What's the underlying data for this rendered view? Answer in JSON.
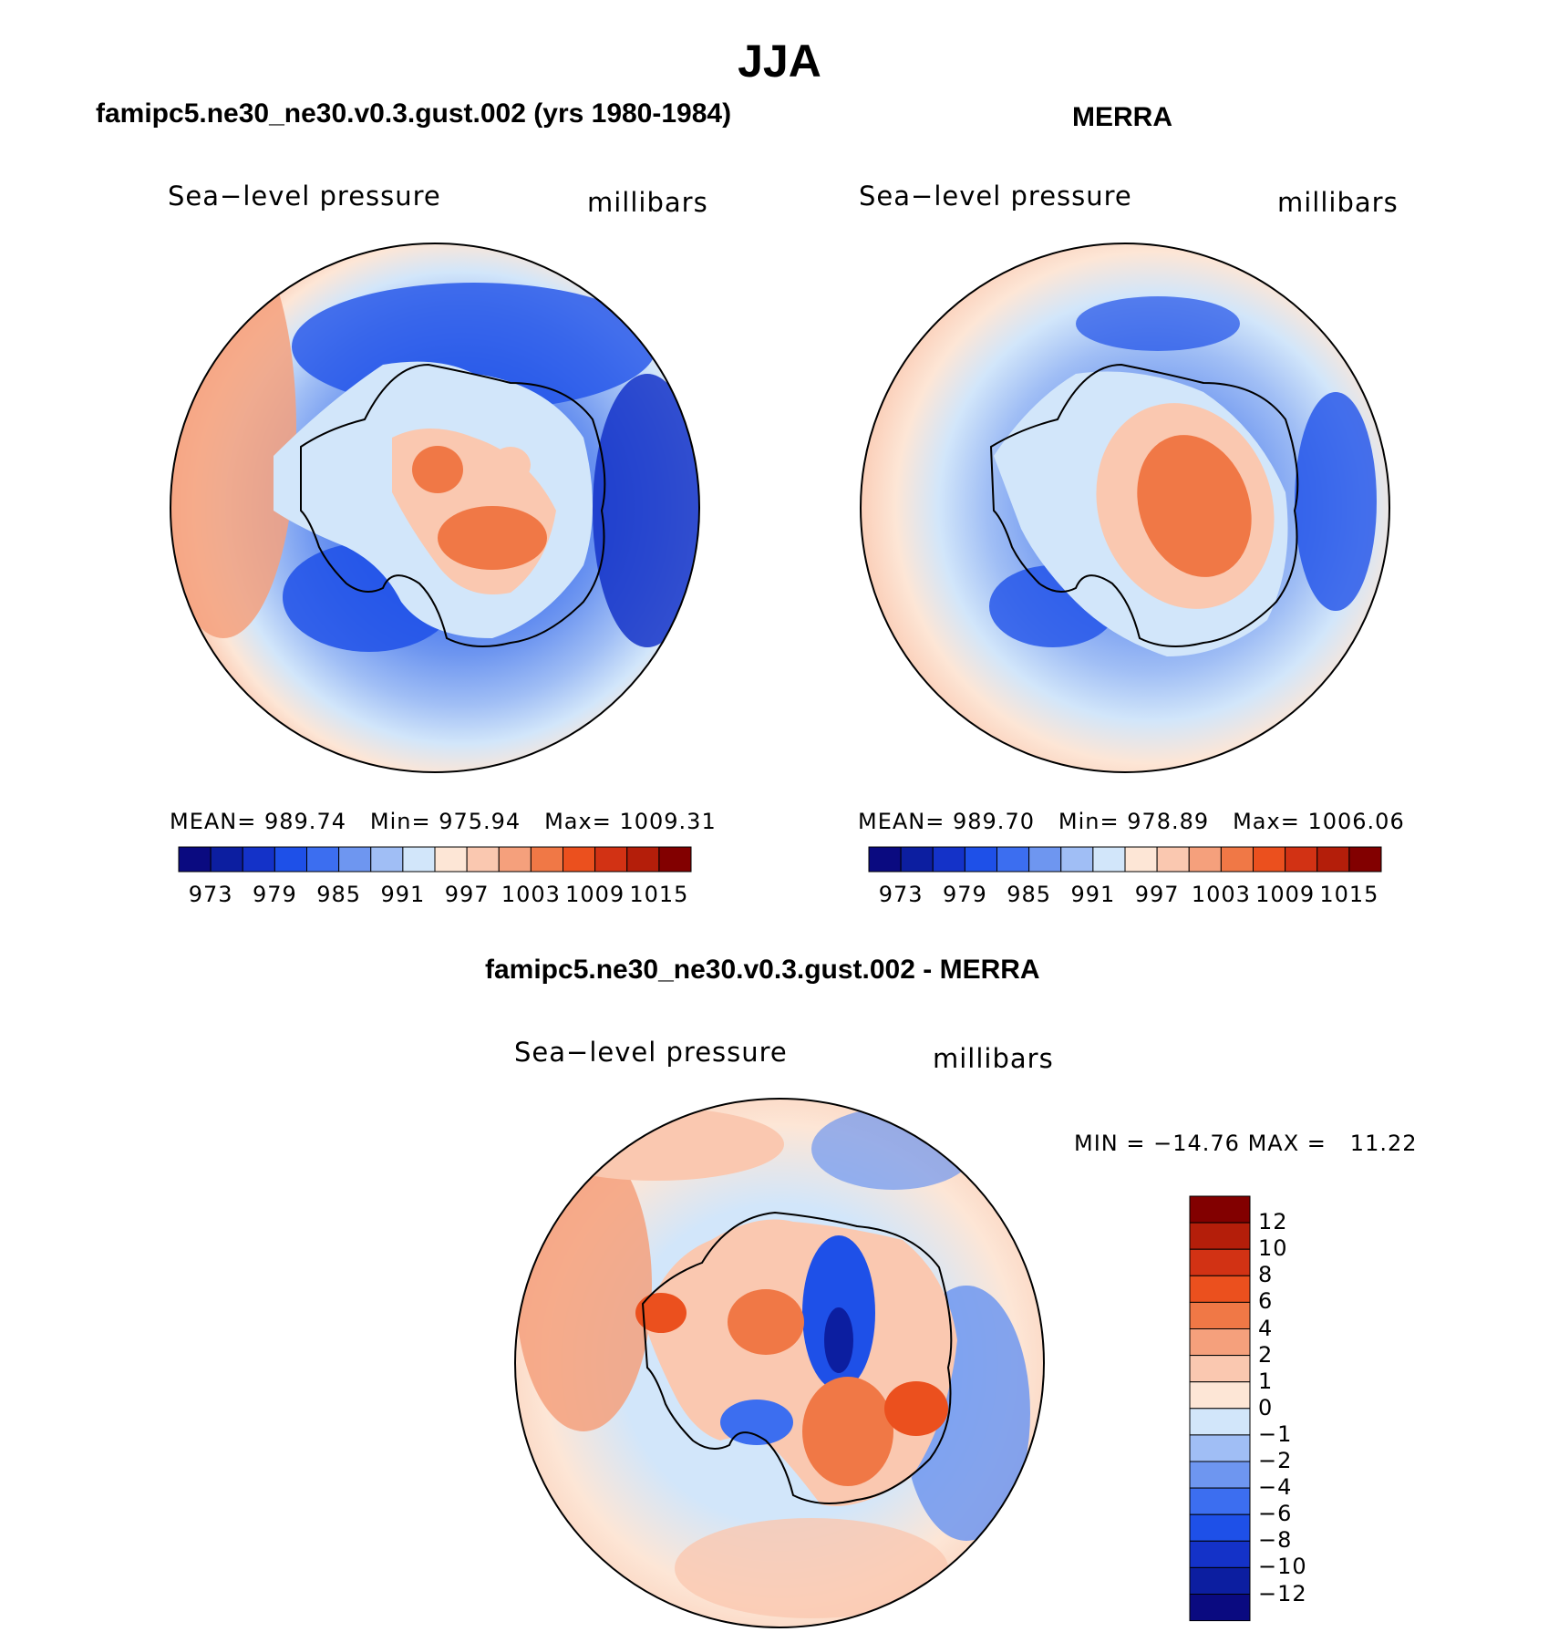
{
  "title": "JJA",
  "panels": [
    {
      "case_title": "famipc5.ne30_ne30.v0.3.gust.002 (yrs 1980-1984)",
      "variable": "Sea−level pressure",
      "units": "millibars",
      "mean_label": "MEAN=",
      "mean": "989.74",
      "min_label": "Min=",
      "min": "975.94",
      "max_label": "Max=",
      "max": "1009.31"
    },
    {
      "case_title": "MERRA",
      "variable": "Sea−level pressure",
      "units": "millibars",
      "mean_label": "MEAN=",
      "mean": "989.70",
      "min_label": "Min=",
      "min": "978.89",
      "max_label": "Max=",
      "max": "1006.06"
    }
  ],
  "difference": {
    "case_title": "famipc5.ne30_ne30.v0.3.gust.002 - MERRA",
    "variable": "Sea−level pressure",
    "units": "millibars",
    "min_label": "MIN =",
    "min": "−14.76",
    "max_label": "MAX =",
    "max": "11.22"
  },
  "abs_colorbar": {
    "ticks": [
      "973",
      "979",
      "985",
      "991",
      "997",
      "1003",
      "1009",
      "1015"
    ],
    "colors": [
      "#0a0a80",
      "#0c1ea0",
      "#1432c8",
      "#1e50e8",
      "#3c6ef0",
      "#6e96f0",
      "#a0bef5",
      "#d2e6fa",
      "#fde6d6",
      "#fac8b0",
      "#f5a07c",
      "#f07846",
      "#eb501e",
      "#d23214",
      "#b41e0a",
      "#820000"
    ]
  },
  "diff_colorbar": {
    "labels": [
      "12",
      "10",
      "8",
      "6",
      "4",
      "2",
      "1",
      "0",
      "−1",
      "−2",
      "−4",
      "−6",
      "−8",
      "−10",
      "−12"
    ],
    "colors": [
      "#820000",
      "#b41e0a",
      "#d23214",
      "#eb501e",
      "#f07846",
      "#f5a07c",
      "#fac8b0",
      "#fde6d6",
      "#d2e6fa",
      "#a0bef5",
      "#6e96f0",
      "#3c6ef0",
      "#1e50e8",
      "#1432c8",
      "#0c1ea0",
      "#0a0a80"
    ]
  }
}
